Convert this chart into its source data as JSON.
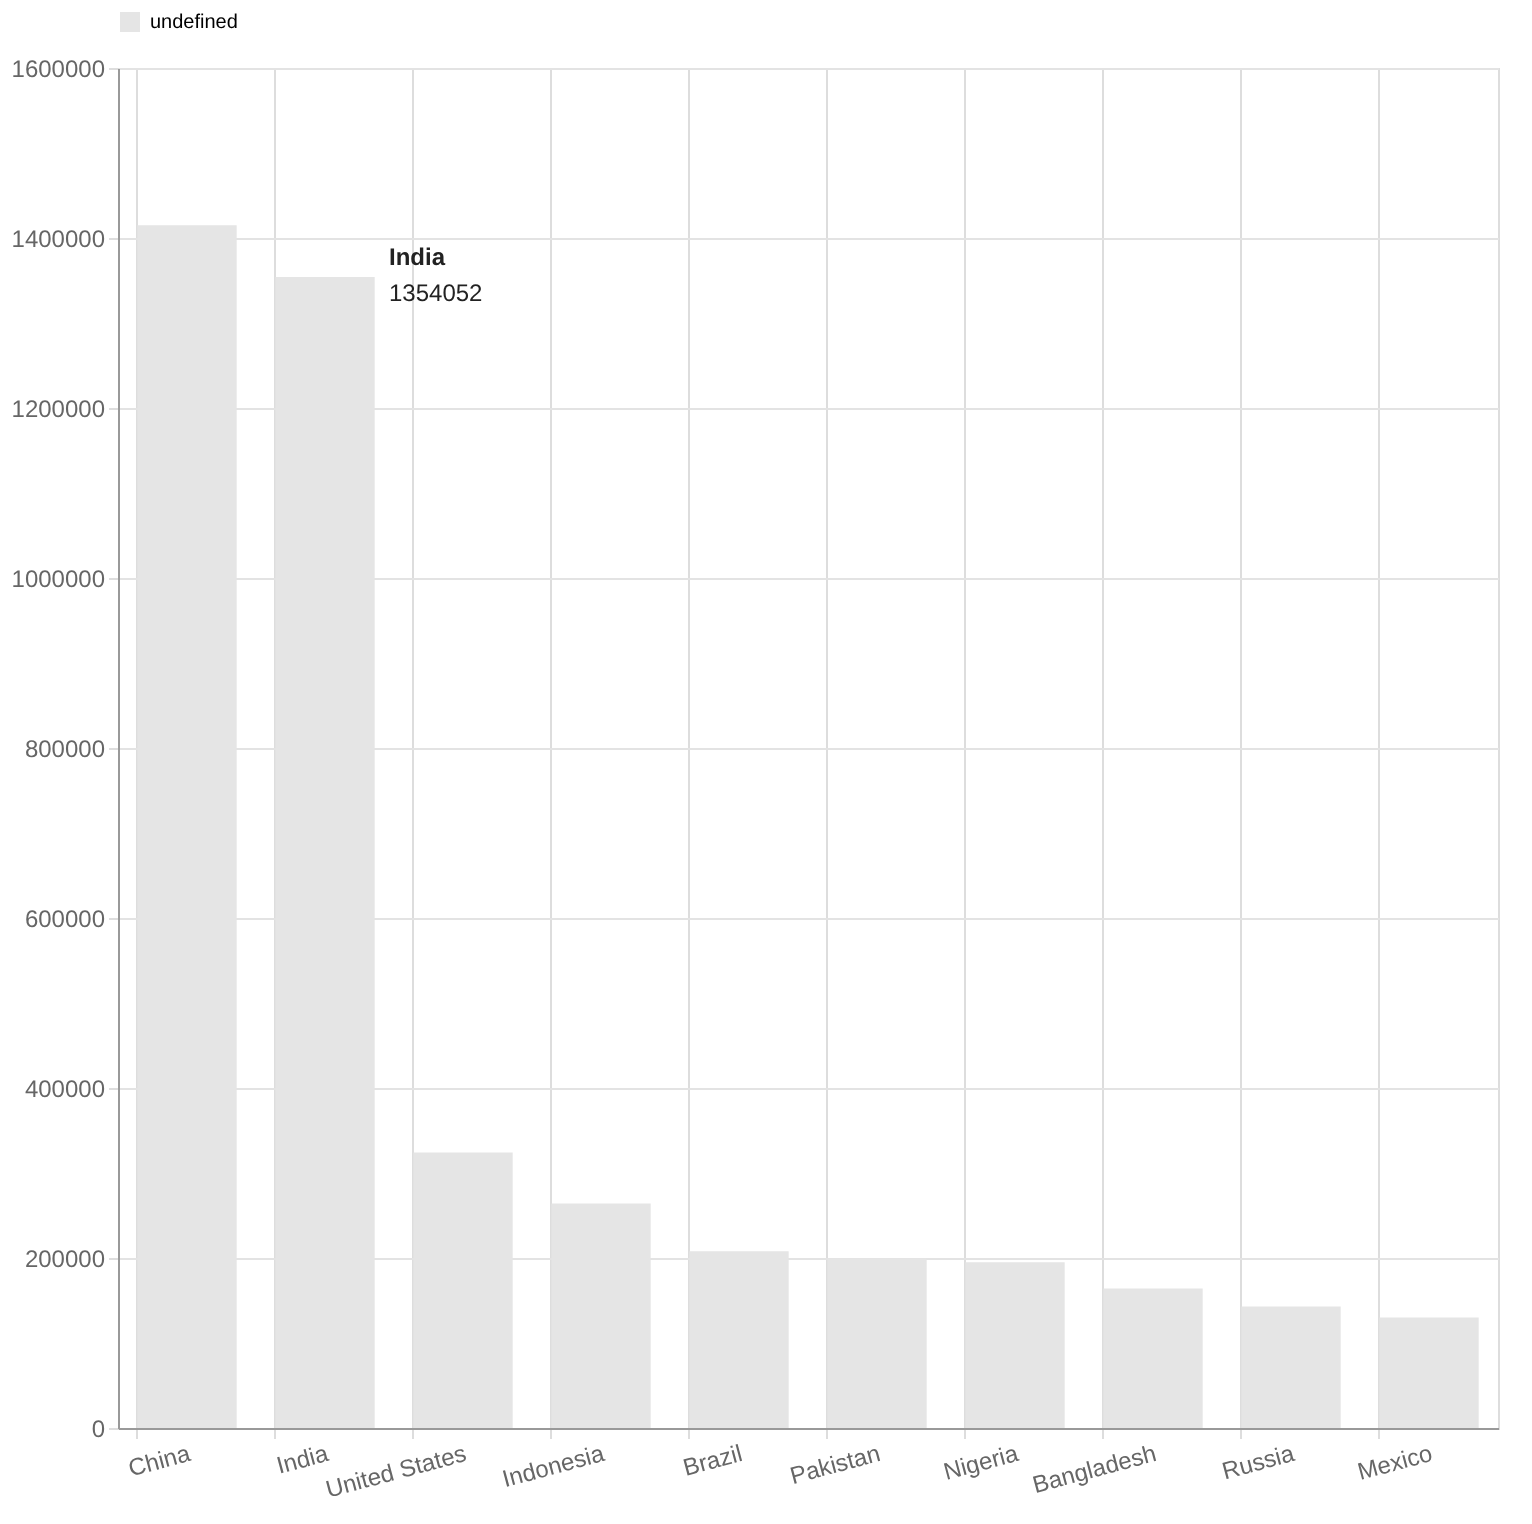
{
  "chart_data": {
    "type": "bar",
    "categories": [
      "China",
      "India",
      "United States",
      "Indonesia",
      "Brazil",
      "Pakistan",
      "Nigeria",
      "Bangladesh",
      "Russia",
      "Mexico"
    ],
    "series": [
      {
        "name": "undefined",
        "color": "#e5e5e5",
        "values": [
          1415000,
          1354052,
          324000,
          264000,
          208000,
          199000,
          195000,
          164000,
          143000,
          130000
        ]
      }
    ],
    "ylim": [
      0,
      1600000
    ],
    "yticks": [
      0,
      200000,
      400000,
      600000,
      800000,
      1000000,
      1200000,
      1400000,
      1600000
    ],
    "grid": true,
    "legend": "top",
    "annotations": [
      {
        "text": "India",
        "x": "India",
        "y": 1354052
      },
      {
        "text": "1354052",
        "x": "India",
        "y": 1354052
      }
    ]
  }
}
